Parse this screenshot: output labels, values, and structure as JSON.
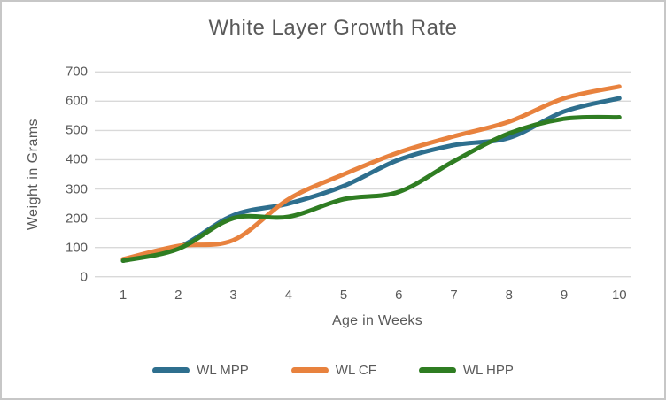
{
  "window": {
    "background": "#FFFFFF",
    "border_color": "#C7C7C7"
  },
  "chart_data": {
    "type": "line",
    "title": "White Layer Growth Rate",
    "xlabel": "Age in Weeks",
    "ylabel": "Weight in Grams",
    "categories": [
      "1",
      "2",
      "3",
      "4",
      "5",
      "6",
      "7",
      "8",
      "9",
      "10"
    ],
    "series": [
      {
        "name": "WL MPP",
        "color": "#2E6F8E",
        "values": [
          55,
          100,
          210,
          250,
          310,
          400,
          450,
          475,
          565,
          610
        ]
      },
      {
        "name": "WL CF",
        "color": "#E8823E",
        "values": [
          60,
          105,
          125,
          265,
          350,
          425,
          480,
          530,
          610,
          650
        ]
      },
      {
        "name": "WL HPP",
        "color": "#2F7D22",
        "values": [
          55,
          95,
          200,
          205,
          265,
          290,
          395,
          490,
          540,
          545
        ]
      }
    ],
    "ylim": [
      0,
      700
    ],
    "y_tick_step": 100,
    "grid": "horizontal",
    "grid_color": "#D9D9D9",
    "text_color": "#595959",
    "legend_position": "bottom",
    "smooth_lines": true
  }
}
